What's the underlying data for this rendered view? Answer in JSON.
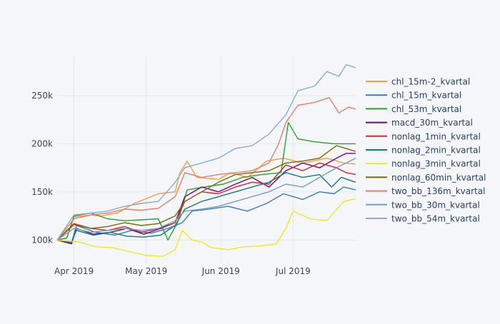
{
  "chart_data": {
    "type": "line",
    "title": "",
    "xlabel": "",
    "ylabel": "",
    "x_ticks": [
      "Apr 2019",
      "May 2019",
      "Jun 2019",
      "Jul 2019"
    ],
    "y_ticks": [
      "100k",
      "150k",
      "200k",
      "250k"
    ],
    "y_tick_values": [
      100000,
      150000,
      200000,
      250000
    ],
    "xlim": [
      "2019-03-25",
      "2019-07-27"
    ],
    "ylim": [
      75000,
      290000
    ],
    "grid": true,
    "legend_position": "right",
    "series": [
      {
        "name": "chl_15m-2_kvartal",
        "color": "#ff9c32",
        "points": [
          [
            "2019-03-25",
            100000
          ],
          [
            "2019-03-29",
            102000
          ],
          [
            "2019-04-01",
            124000
          ],
          [
            "2019-04-08",
            126000
          ],
          [
            "2019-04-12",
            125000
          ],
          [
            "2019-04-19",
            128000
          ],
          [
            "2019-04-26",
            138000
          ],
          [
            "2019-05-06",
            148000
          ],
          [
            "2019-05-13",
            150000
          ],
          [
            "2019-05-15",
            170000
          ],
          [
            "2019-05-18",
            182000
          ],
          [
            "2019-05-22",
            165000
          ],
          [
            "2019-05-31",
            163000
          ],
          [
            "2019-06-05",
            170000
          ],
          [
            "2019-06-12",
            165000
          ],
          [
            "2019-06-20",
            182000
          ],
          [
            "2019-06-27",
            185000
          ],
          [
            "2019-07-05",
            180000
          ],
          [
            "2019-07-15",
            185000
          ],
          [
            "2019-07-22",
            180000
          ],
          [
            "2019-07-27",
            179000
          ]
        ]
      },
      {
        "name": "chl_15m_kvartal",
        "color": "#3a7bbf",
        "points": [
          [
            "2019-03-25",
            100000
          ],
          [
            "2019-03-31",
            97000
          ],
          [
            "2019-04-02",
            115000
          ],
          [
            "2019-04-10",
            108000
          ],
          [
            "2019-04-18",
            105000
          ],
          [
            "2019-04-25",
            110000
          ],
          [
            "2019-05-03",
            107000
          ],
          [
            "2019-05-10",
            112000
          ],
          [
            "2019-05-16",
            118000
          ],
          [
            "2019-05-20",
            130000
          ],
          [
            "2019-05-27",
            132000
          ],
          [
            "2019-06-04",
            135000
          ],
          [
            "2019-06-12",
            130000
          ],
          [
            "2019-06-20",
            138000
          ],
          [
            "2019-06-27",
            148000
          ],
          [
            "2019-07-05",
            142000
          ],
          [
            "2019-07-12",
            150000
          ],
          [
            "2019-07-18",
            148000
          ],
          [
            "2019-07-22",
            155000
          ],
          [
            "2019-07-27",
            152000
          ]
        ]
      },
      {
        "name": "chl_53m_kvartal",
        "color": "#2ca02c",
        "points": [
          [
            "2019-03-25",
            100000
          ],
          [
            "2019-03-29",
            102000
          ],
          [
            "2019-04-01",
            125000
          ],
          [
            "2019-04-08",
            128000
          ],
          [
            "2019-04-15",
            122000
          ],
          [
            "2019-04-22",
            120000
          ],
          [
            "2019-04-29",
            121000
          ],
          [
            "2019-05-06",
            122000
          ],
          [
            "2019-05-10",
            100000
          ],
          [
            "2019-05-14",
            118000
          ],
          [
            "2019-05-18",
            152000
          ],
          [
            "2019-05-25",
            155000
          ],
          [
            "2019-06-02",
            158000
          ],
          [
            "2019-06-10",
            165000
          ],
          [
            "2019-06-18",
            168000
          ],
          [
            "2019-06-26",
            170000
          ],
          [
            "2019-06-29",
            222000
          ],
          [
            "2019-07-03",
            205000
          ],
          [
            "2019-07-10",
            202000
          ],
          [
            "2019-07-18",
            200000
          ],
          [
            "2019-07-27",
            200000
          ]
        ]
      },
      {
        "name": "macd_30m_kvartal",
        "color": "#7f007f",
        "points": [
          [
            "2019-03-25",
            100000
          ],
          [
            "2019-03-31",
            96000
          ],
          [
            "2019-04-02",
            112000
          ],
          [
            "2019-04-09",
            106000
          ],
          [
            "2019-04-16",
            108000
          ],
          [
            "2019-04-23",
            112000
          ],
          [
            "2019-04-30",
            106000
          ],
          [
            "2019-05-07",
            112000
          ],
          [
            "2019-05-13",
            118000
          ],
          [
            "2019-05-17",
            145000
          ],
          [
            "2019-05-24",
            155000
          ],
          [
            "2019-05-31",
            150000
          ],
          [
            "2019-06-07",
            158000
          ],
          [
            "2019-06-14",
            165000
          ],
          [
            "2019-06-21",
            155000
          ],
          [
            "2019-06-28",
            172000
          ],
          [
            "2019-07-05",
            180000
          ],
          [
            "2019-07-12",
            175000
          ],
          [
            "2019-07-19",
            185000
          ],
          [
            "2019-07-23",
            190000
          ],
          [
            "2019-07-27",
            190000
          ]
        ]
      },
      {
        "name": "nonlag_1min_kvartal",
        "color": "#d62728",
        "points": [
          [
            "2019-03-25",
            100000
          ],
          [
            "2019-04-01",
            117000
          ],
          [
            "2019-04-08",
            112000
          ],
          [
            "2019-04-15",
            110000
          ],
          [
            "2019-04-22",
            114000
          ],
          [
            "2019-04-29",
            108000
          ],
          [
            "2019-05-06",
            112000
          ],
          [
            "2019-05-13",
            118000
          ],
          [
            "2019-05-17",
            140000
          ],
          [
            "2019-05-24",
            150000
          ],
          [
            "2019-05-31",
            148000
          ],
          [
            "2019-06-07",
            155000
          ],
          [
            "2019-06-14",
            160000
          ],
          [
            "2019-06-21",
            158000
          ],
          [
            "2019-06-28",
            178000
          ],
          [
            "2019-07-05",
            172000
          ],
          [
            "2019-07-12",
            180000
          ],
          [
            "2019-07-19",
            175000
          ],
          [
            "2019-07-23",
            170000
          ],
          [
            "2019-07-27",
            168000
          ]
        ]
      },
      {
        "name": "nonlag_2min_kvartal",
        "color": "#137d74",
        "points": [
          [
            "2019-03-25",
            100000
          ],
          [
            "2019-03-31",
            98000
          ],
          [
            "2019-04-02",
            110000
          ],
          [
            "2019-04-09",
            105000
          ],
          [
            "2019-04-16",
            108000
          ],
          [
            "2019-04-23",
            104000
          ],
          [
            "2019-04-30",
            103000
          ],
          [
            "2019-05-07",
            105000
          ],
          [
            "2019-05-13",
            115000
          ],
          [
            "2019-05-17",
            132000
          ],
          [
            "2019-05-24",
            140000
          ],
          [
            "2019-05-31",
            145000
          ],
          [
            "2019-06-07",
            150000
          ],
          [
            "2019-06-14",
            155000
          ],
          [
            "2019-06-21",
            160000
          ],
          [
            "2019-06-28",
            170000
          ],
          [
            "2019-07-05",
            165000
          ],
          [
            "2019-07-12",
            168000
          ],
          [
            "2019-07-17",
            155000
          ],
          [
            "2019-07-21",
            165000
          ],
          [
            "2019-07-27",
            160000
          ]
        ]
      },
      {
        "name": "nonlag_3min_kvartal",
        "color": "#f0e81c",
        "points": [
          [
            "2019-03-25",
            100000
          ],
          [
            "2019-04-03",
            98000
          ],
          [
            "2019-04-10",
            93000
          ],
          [
            "2019-04-17",
            92000
          ],
          [
            "2019-04-24",
            88000
          ],
          [
            "2019-05-01",
            84000
          ],
          [
            "2019-05-08",
            83000
          ],
          [
            "2019-05-13",
            90000
          ],
          [
            "2019-05-16",
            110000
          ],
          [
            "2019-05-20",
            100000
          ],
          [
            "2019-05-24",
            98000
          ],
          [
            "2019-05-28",
            92000
          ],
          [
            "2019-06-04",
            90000
          ],
          [
            "2019-06-11",
            93000
          ],
          [
            "2019-06-18",
            94000
          ],
          [
            "2019-06-24",
            96000
          ],
          [
            "2019-06-28",
            112000
          ],
          [
            "2019-07-01",
            130000
          ],
          [
            "2019-07-08",
            122000
          ],
          [
            "2019-07-15",
            120000
          ],
          [
            "2019-07-22",
            140000
          ],
          [
            "2019-07-27",
            143000
          ]
        ]
      },
      {
        "name": "nonlag_60min_kvartal",
        "color": "#7b6b00",
        "points": [
          [
            "2019-03-25",
            100000
          ],
          [
            "2019-04-01",
            116000
          ],
          [
            "2019-04-08",
            112000
          ],
          [
            "2019-04-15",
            114000
          ],
          [
            "2019-04-22",
            118000
          ],
          [
            "2019-04-29",
            115000
          ],
          [
            "2019-05-06",
            117000
          ],
          [
            "2019-05-13",
            125000
          ],
          [
            "2019-05-17",
            140000
          ],
          [
            "2019-05-24",
            150000
          ],
          [
            "2019-05-31",
            160000
          ],
          [
            "2019-06-07",
            168000
          ],
          [
            "2019-06-14",
            170000
          ],
          [
            "2019-06-21",
            172000
          ],
          [
            "2019-06-28",
            180000
          ],
          [
            "2019-07-05",
            182000
          ],
          [
            "2019-07-12",
            185000
          ],
          [
            "2019-07-19",
            198000
          ],
          [
            "2019-07-23",
            195000
          ],
          [
            "2019-07-27",
            192000
          ]
        ]
      },
      {
        "name": "two_bb_136m_kvartal",
        "color": "#ef7b6b",
        "points": [
          [
            "2019-03-25",
            100000
          ],
          [
            "2019-04-01",
            122000
          ],
          [
            "2019-04-08",
            126000
          ],
          [
            "2019-04-15",
            128000
          ],
          [
            "2019-04-22",
            132000
          ],
          [
            "2019-04-29",
            131000
          ],
          [
            "2019-05-06",
            133000
          ],
          [
            "2019-05-13",
            145000
          ],
          [
            "2019-05-17",
            170000
          ],
          [
            "2019-05-24",
            165000
          ],
          [
            "2019-05-31",
            168000
          ],
          [
            "2019-06-07",
            170000
          ],
          [
            "2019-06-14",
            172000
          ],
          [
            "2019-06-21",
            180000
          ],
          [
            "2019-06-25",
            200000
          ],
          [
            "2019-06-28",
            222000
          ],
          [
            "2019-07-03",
            240000
          ],
          [
            "2019-07-10",
            243000
          ],
          [
            "2019-07-16",
            248000
          ],
          [
            "2019-07-20",
            232000
          ],
          [
            "2019-07-24",
            238000
          ],
          [
            "2019-07-27",
            236000
          ]
        ]
      },
      {
        "name": "two_bb_30m_kvartal",
        "color": "#6f9fc8",
        "points": [
          [
            "2019-03-25",
            100000
          ],
          [
            "2019-04-01",
            112000
          ],
          [
            "2019-04-08",
            108000
          ],
          [
            "2019-04-15",
            110000
          ],
          [
            "2019-04-22",
            112000
          ],
          [
            "2019-04-29",
            110000
          ],
          [
            "2019-05-06",
            112000
          ],
          [
            "2019-05-13",
            120000
          ],
          [
            "2019-05-17",
            130000
          ],
          [
            "2019-05-24",
            132000
          ],
          [
            "2019-05-31",
            135000
          ],
          [
            "2019-06-07",
            140000
          ],
          [
            "2019-06-14",
            145000
          ],
          [
            "2019-06-21",
            150000
          ],
          [
            "2019-06-28",
            158000
          ],
          [
            "2019-07-05",
            155000
          ],
          [
            "2019-07-12",
            165000
          ],
          [
            "2019-07-19",
            175000
          ],
          [
            "2019-07-27",
            185000
          ]
        ]
      },
      {
        "name": "two_bb_54m_kvartal",
        "color": "#86aec8",
        "points": [
          [
            "2019-03-25",
            100000
          ],
          [
            "2019-04-01",
            126000
          ],
          [
            "2019-04-08",
            128000
          ],
          [
            "2019-04-15",
            130000
          ],
          [
            "2019-04-22",
            135000
          ],
          [
            "2019-04-29",
            138000
          ],
          [
            "2019-05-06",
            140000
          ],
          [
            "2019-05-13",
            160000
          ],
          [
            "2019-05-17",
            175000
          ],
          [
            "2019-05-24",
            180000
          ],
          [
            "2019-05-31",
            185000
          ],
          [
            "2019-06-07",
            195000
          ],
          [
            "2019-06-14",
            198000
          ],
          [
            "2019-06-21",
            210000
          ],
          [
            "2019-06-28",
            230000
          ],
          [
            "2019-07-03",
            255000
          ],
          [
            "2019-07-10",
            260000
          ],
          [
            "2019-07-15",
            275000
          ],
          [
            "2019-07-20",
            270000
          ],
          [
            "2019-07-23",
            282000
          ],
          [
            "2019-07-27",
            279000
          ]
        ]
      }
    ]
  },
  "colors": {
    "background": "#f4f6fa",
    "grid": "#e2e6ee",
    "tick_text": "#444444",
    "legend_text": "#2a3f5f"
  }
}
